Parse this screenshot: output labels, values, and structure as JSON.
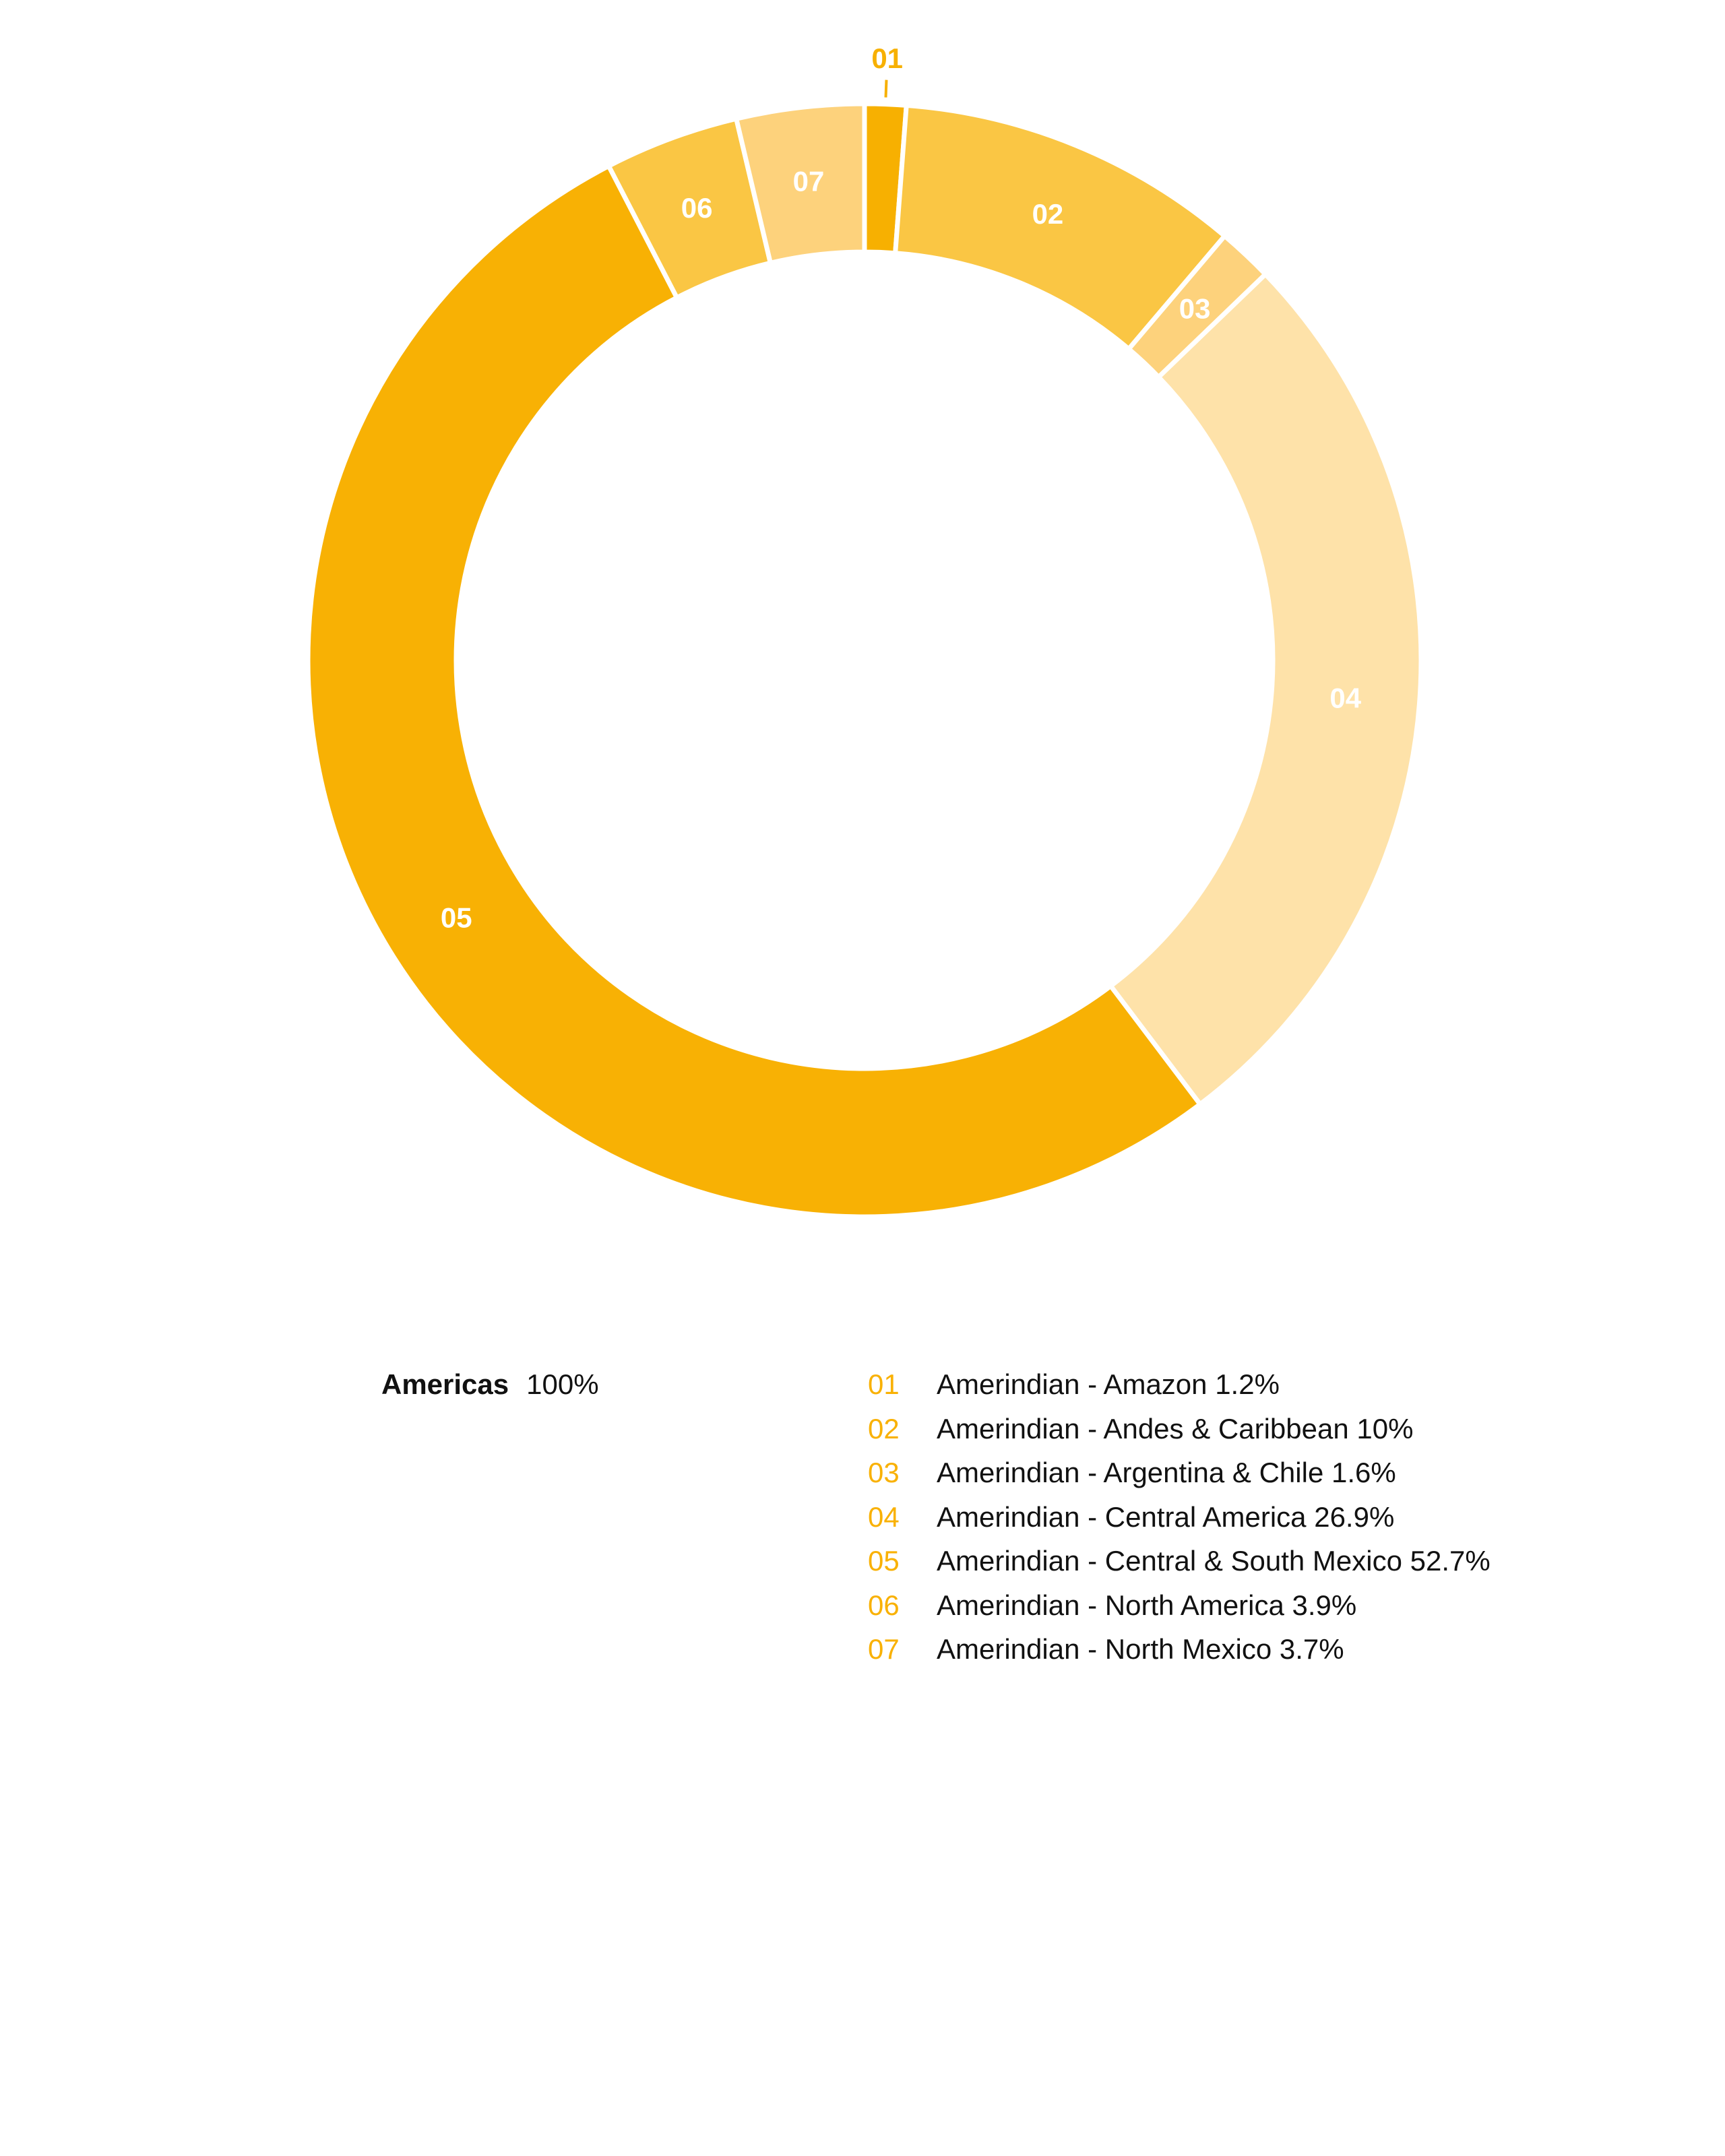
{
  "chart_data": {
    "type": "pie",
    "style": "donut",
    "start_angle_deg": 0,
    "direction": "clockwise",
    "summary": {
      "region": "Americas",
      "total": "100%"
    },
    "slices": [
      {
        "id": "01",
        "label": "Amerindian - Amazon 1.2%",
        "value": 1.2,
        "color": "#f7b001",
        "label_color": "#f7b001",
        "label_position": "outside"
      },
      {
        "id": "02",
        "label": "Amerindian - Andes & Caribbean 10%",
        "value": 10,
        "color": "#fac644",
        "label_color": "#ffffff",
        "label_position": "inside"
      },
      {
        "id": "03",
        "label": "Amerindian - Argentina & Chile 1.6%",
        "value": 1.6,
        "color": "#fdd27c",
        "label_color": "#ffffff",
        "label_position": "inside"
      },
      {
        "id": "04",
        "label": "Amerindian - Central America 26.9%",
        "value": 26.9,
        "color": "#fee2a9",
        "label_color": "#ffffff",
        "label_position": "inside"
      },
      {
        "id": "05",
        "label": "Amerindian - Central & South Mexico 52.7%",
        "value": 52.7,
        "color": "#f8b104",
        "label_color": "#ffffff",
        "label_position": "inside"
      },
      {
        "id": "06",
        "label": "Amerindian - North America 3.9%",
        "value": 3.9,
        "color": "#fac644",
        "label_color": "#ffffff",
        "label_position": "inside"
      },
      {
        "id": "07",
        "label": "Amerindian - North Mexico 3.7%",
        "value": 3.7,
        "color": "#fdd27c",
        "label_color": "#ffffff",
        "label_position": "inside"
      }
    ],
    "legend": {
      "number_color": "#f9b104",
      "text_color": "#111111"
    },
    "separator_color": "#ffffff"
  }
}
